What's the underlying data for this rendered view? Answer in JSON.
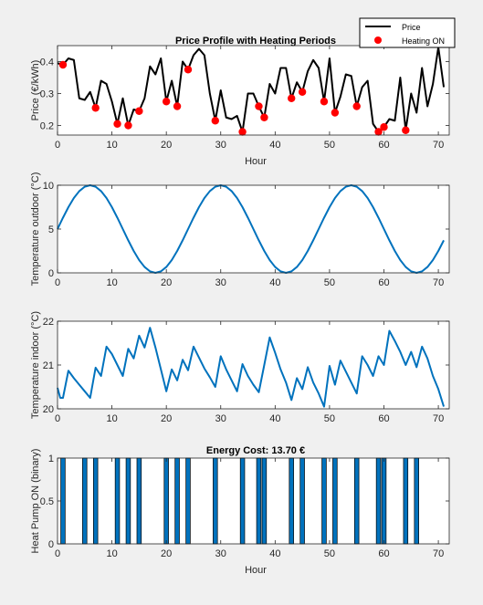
{
  "colors": {
    "figure_bg": "#f0f0f0",
    "axes_bg": "#ffffff",
    "price_line": "#000000",
    "heating_marker": "#ff0000",
    "temperature_line": "#0072bd",
    "bar_fill": "#0072bd",
    "bar_edge": "#000000"
  },
  "chart_data": [
    {
      "type": "line",
      "title": "Price Profile with Heating Periods",
      "xlabel": "Hour",
      "ylabel": "Price (€/kWh)",
      "xlim": [
        0,
        72
      ],
      "ylim": [
        0.17,
        0.45
      ],
      "xticks": [
        0,
        10,
        20,
        30,
        40,
        50,
        60,
        70
      ],
      "yticks": [
        0.2,
        0.3,
        0.4
      ],
      "ytick_labels": [
        "0.2",
        "0.3",
        "0.4"
      ],
      "legend": {
        "location": "top-right",
        "entries": [
          "Price",
          "Heating ON"
        ]
      },
      "series": [
        {
          "name": "Price",
          "style": "line",
          "color": "#000000",
          "x": [
            0,
            1,
            2,
            3,
            4,
            5,
            6,
            7,
            8,
            9,
            10,
            11,
            12,
            13,
            14,
            15,
            16,
            17,
            18,
            19,
            20,
            21,
            22,
            23,
            24,
            25,
            26,
            27,
            28,
            29,
            30,
            31,
            32,
            33,
            34,
            35,
            36,
            37,
            38,
            39,
            40,
            41,
            42,
            43,
            44,
            45,
            46,
            47,
            48,
            49,
            50,
            51,
            52,
            53,
            54,
            55,
            56,
            57,
            58,
            59,
            60,
            61,
            62,
            63,
            64,
            65,
            66,
            67,
            68,
            69,
            70,
            71
          ],
          "values": [
            0.395,
            0.39,
            0.41,
            0.405,
            0.285,
            0.28,
            0.305,
            0.255,
            0.34,
            0.33,
            0.275,
            0.205,
            0.285,
            0.2,
            0.25,
            0.245,
            0.285,
            0.385,
            0.36,
            0.41,
            0.275,
            0.34,
            0.26,
            0.4,
            0.375,
            0.42,
            0.44,
            0.42,
            0.3,
            0.215,
            0.31,
            0.225,
            0.22,
            0.23,
            0.18,
            0.3,
            0.3,
            0.26,
            0.225,
            0.33,
            0.3,
            0.38,
            0.38,
            0.285,
            0.335,
            0.305,
            0.37,
            0.405,
            0.38,
            0.275,
            0.41,
            0.24,
            0.29,
            0.36,
            0.355,
            0.26,
            0.32,
            0.34,
            0.205,
            0.18,
            0.195,
            0.22,
            0.215,
            0.35,
            0.185,
            0.3,
            0.24,
            0.38,
            0.26,
            0.33,
            0.445,
            0.32
          ]
        },
        {
          "name": "Heating ON",
          "style": "markers",
          "color": "#ff0000",
          "x": [
            1,
            7,
            11,
            13,
            15,
            20,
            22,
            24,
            29,
            34,
            37,
            38,
            43,
            45,
            49,
            51,
            55,
            59,
            60,
            64
          ],
          "values": [
            0.39,
            0.255,
            0.205,
            0.2,
            0.245,
            0.275,
            0.26,
            0.375,
            0.215,
            0.18,
            0.26,
            0.225,
            0.285,
            0.305,
            0.275,
            0.24,
            0.26,
            0.18,
            0.195,
            0.185
          ]
        }
      ]
    },
    {
      "type": "line",
      "xlabel": "",
      "ylabel": "Temperature outdoor (°C)",
      "xlim": [
        0,
        72
      ],
      "ylim": [
        0,
        10
      ],
      "xticks": [
        0,
        10,
        20,
        30,
        40,
        50,
        60,
        70
      ],
      "yticks": [
        0,
        5,
        10
      ],
      "ytick_labels": [
        "0",
        "5",
        "10"
      ],
      "series": [
        {
          "color": "#0072bd",
          "x": [
            0,
            1,
            2,
            3,
            4,
            5,
            6,
            7,
            8,
            9,
            10,
            11,
            12,
            13,
            14,
            15,
            16,
            17,
            18,
            19,
            20,
            21,
            22,
            23,
            24,
            25,
            26,
            27,
            28,
            29,
            30,
            31,
            32,
            33,
            34,
            35,
            36,
            37,
            38,
            39,
            40,
            41,
            42,
            43,
            44,
            45,
            46,
            47,
            48,
            49,
            50,
            51,
            52,
            53,
            54,
            55,
            56,
            57,
            58,
            59,
            60,
            61,
            62,
            63,
            64,
            65,
            66,
            67,
            68,
            69,
            70,
            71
          ],
          "values": [
            5.0,
            6.29,
            7.5,
            8.54,
            9.33,
            9.83,
            10.0,
            9.83,
            9.33,
            8.54,
            7.5,
            6.29,
            5.0,
            3.71,
            2.5,
            1.46,
            0.67,
            0.17,
            0.0,
            0.17,
            0.67,
            1.46,
            2.5,
            3.71,
            5.0,
            6.29,
            7.5,
            8.54,
            9.33,
            9.83,
            10.0,
            9.83,
            9.33,
            8.54,
            7.5,
            6.29,
            5.0,
            3.71,
            2.5,
            1.46,
            0.67,
            0.17,
            0.0,
            0.17,
            0.67,
            1.46,
            2.5,
            3.71,
            5.0,
            6.29,
            7.5,
            8.54,
            9.33,
            9.83,
            10.0,
            9.83,
            9.33,
            8.54,
            7.5,
            6.29,
            5.0,
            3.71,
            2.5,
            1.46,
            0.67,
            0.17,
            0.0,
            0.17,
            0.67,
            1.46,
            2.5,
            3.71
          ]
        }
      ]
    },
    {
      "type": "line",
      "xlabel": "",
      "ylabel": "Temperature indoor (°C)",
      "xlim": [
        0,
        72
      ],
      "ylim": [
        20,
        22
      ],
      "xticks": [
        0,
        10,
        20,
        30,
        40,
        50,
        60,
        70
      ],
      "yticks": [
        20,
        21,
        22
      ],
      "ytick_labels": [
        "20",
        "21",
        "22"
      ],
      "series": [
        {
          "color": "#0072bd",
          "x": [
            0,
            0.5,
            1,
            2,
            3,
            4,
            5,
            6,
            7,
            8,
            9,
            10,
            11,
            12,
            13,
            14,
            15,
            16,
            17,
            18,
            19,
            20,
            21,
            22,
            23,
            24,
            25,
            26,
            27,
            28,
            29,
            30,
            31,
            32,
            33,
            34,
            35,
            36,
            37,
            38,
            39,
            40,
            41,
            42,
            43,
            44,
            45,
            46,
            47,
            48,
            49,
            50,
            51,
            52,
            53,
            54,
            55,
            56,
            57,
            58,
            59,
            60,
            61,
            62,
            63,
            64,
            65,
            66,
            67,
            68,
            69,
            70,
            71
          ],
          "values": [
            20.48,
            20.25,
            20.25,
            20.87,
            20.7,
            20.55,
            20.4,
            20.25,
            20.94,
            20.75,
            21.42,
            21.25,
            21.0,
            20.75,
            21.37,
            21.15,
            21.67,
            21.4,
            21.85,
            21.4,
            20.9,
            20.4,
            20.9,
            20.65,
            21.12,
            20.88,
            21.42,
            21.17,
            20.92,
            20.72,
            20.5,
            21.2,
            20.9,
            20.65,
            20.4,
            21.02,
            20.75,
            20.55,
            20.38,
            21.0,
            21.63,
            21.28,
            20.9,
            20.6,
            20.2,
            20.7,
            20.45,
            20.95,
            20.6,
            20.35,
            20.05,
            20.98,
            20.55,
            21.1,
            20.85,
            20.6,
            20.35,
            21.2,
            21.0,
            20.75,
            21.2,
            21.0,
            21.78,
            21.55,
            21.3,
            21.0,
            21.3,
            20.95,
            21.42,
            21.15,
            20.75,
            20.45,
            20.05
          ]
        }
      ]
    },
    {
      "type": "bar",
      "title": "Energy Cost: 13.70 €",
      "xlabel": "Hour",
      "ylabel": "Heat Pump ON (binary)",
      "xlim": [
        0,
        72
      ],
      "ylim": [
        0,
        1
      ],
      "xticks": [
        0,
        10,
        20,
        30,
        40,
        50,
        60,
        70
      ],
      "yticks": [
        0,
        0.5,
        1
      ],
      "ytick_labels": [
        "0",
        "0.5",
        "1"
      ],
      "series": [
        {
          "color": "#0072bd",
          "x": [
            1,
            5,
            7,
            11,
            13,
            15,
            20,
            22,
            24,
            29,
            34,
            37,
            38,
            43,
            45,
            49,
            51,
            55,
            59,
            60,
            64,
            66
          ],
          "values": [
            1,
            1,
            1,
            1,
            1,
            1,
            1,
            1,
            1,
            1,
            1,
            1,
            1,
            1,
            1,
            1,
            1,
            1,
            1,
            1,
            1,
            1
          ]
        }
      ]
    }
  ]
}
